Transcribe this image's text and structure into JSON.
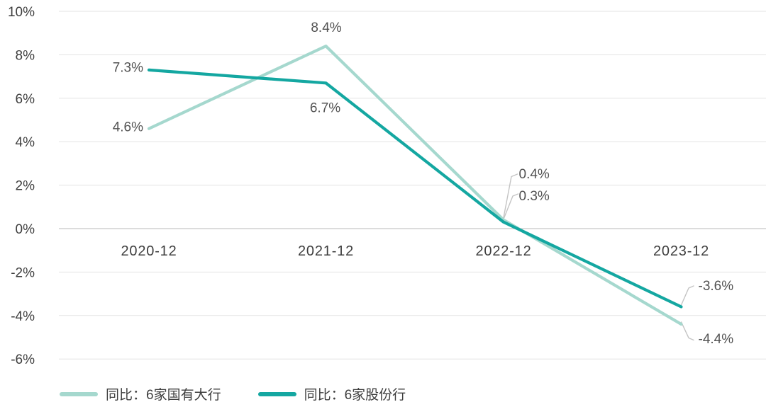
{
  "chart_data": {
    "type": "line",
    "categories": [
      "2020-12",
      "2021-12",
      "2022-12",
      "2023-12"
    ],
    "series": [
      {
        "name": "同比：6家国有大行",
        "color": "#a5d8ce",
        "values": [
          4.6,
          8.4,
          0.4,
          -4.4
        ],
        "labels": [
          "4.6%",
          "8.4%",
          "0.4%",
          "-4.4%"
        ]
      },
      {
        "name": "同比：6家股份行",
        "color": "#14a7a1",
        "values": [
          7.3,
          6.7,
          0.3,
          -3.6
        ],
        "labels": [
          "7.3%",
          "6.7%",
          "0.3%",
          "-3.6%"
        ]
      }
    ],
    "y_ticks": [
      "10%",
      "8%",
      "6%",
      "4%",
      "2%",
      "0%",
      "-2%",
      "-4%",
      "-6%"
    ],
    "y_tick_values": [
      10,
      8,
      6,
      4,
      2,
      0,
      -2,
      -4,
      -6
    ],
    "ylim": [
      -6,
      10
    ],
    "grid": true,
    "legend_position": "bottom-left"
  },
  "colors": {
    "background": "#ffffff",
    "gridline": "#e3e3e3",
    "zero_line": "#c8c8c8",
    "leader_line": "#c4c4c4",
    "axis_text": "#3e3e3e",
    "data_label_text": "#525252"
  }
}
